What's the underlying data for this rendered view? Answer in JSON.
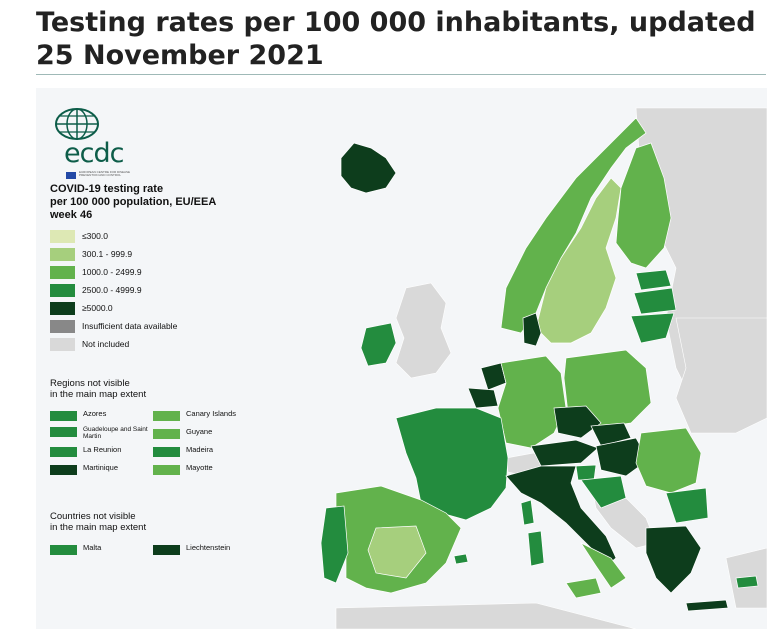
{
  "page": {
    "title": "Testing rates per 100 000 inhabitants, updated 25 November 2021"
  },
  "logo": {
    "word": "ecdc",
    "subtext": "EUROPEAN CENTRE FOR DISEASE PREVENTION AND CONTROL",
    "icon": "globe-logo-icon"
  },
  "legend": {
    "title_line1": "COVID-19 testing rate",
    "title_line2": "per 100 000 population, EU/EEA",
    "title_line3": "week 46",
    "items": [
      {
        "label": "≤300.0",
        "color": "#dde8b4"
      },
      {
        "label": "300.1 - 999.9",
        "color": "#a6cf7d"
      },
      {
        "label": "1000.0 - 2499.9",
        "color": "#62b24c"
      },
      {
        "label": "2500.0 - 4999.9",
        "color": "#238c3e"
      },
      {
        "label": "≥5000.0",
        "color": "#0d3d1c"
      },
      {
        "label": "Insufficient data available",
        "color": "#888888"
      },
      {
        "label": "Not included",
        "color": "#d9d9d9"
      }
    ]
  },
  "regions": {
    "title_line1": "Regions not visible",
    "title_line2": "in the main map extent",
    "items": [
      {
        "label": "Azores",
        "color": "#238c3e"
      },
      {
        "label": "Canary Islands",
        "color": "#62b24c"
      },
      {
        "label": "Guadeloupe and Saint Martin",
        "color": "#238c3e"
      },
      {
        "label": "Guyane",
        "color": "#62b24c"
      },
      {
        "label": "La Reunion",
        "color": "#238c3e"
      },
      {
        "label": "Madeira",
        "color": "#238c3e"
      },
      {
        "label": "Martinique",
        "color": "#0d3d1c"
      },
      {
        "label": "Mayotte",
        "color": "#62b24c"
      }
    ]
  },
  "countries": {
    "title_line1": "Countries not visible",
    "title_line2": "in the main map extent",
    "items": [
      {
        "label": "Malta",
        "color": "#238c3e"
      },
      {
        "label": "Liechtenstein",
        "color": "#0d3d1c"
      }
    ]
  },
  "map": {
    "background_color": "#f4f6f8",
    "not_included_color": "#d9d9d9",
    "border_color": "#ffffff"
  }
}
